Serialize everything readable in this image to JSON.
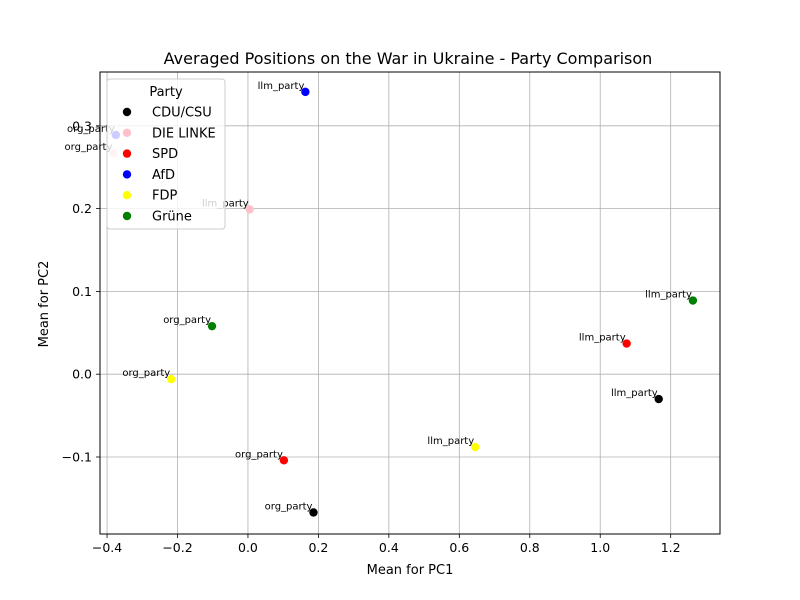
{
  "chart_data": {
    "type": "scatter",
    "title": "Averaged Positions on the War in Ukraine - Party Comparison",
    "xlabel": "Mean for PC1",
    "ylabel": "Mean for PC2",
    "xlim": [
      -0.42,
      1.34
    ],
    "ylim": [
      -0.193,
      0.365
    ],
    "xticks": [
      -0.4,
      -0.2,
      0.0,
      0.2,
      0.4,
      0.6,
      0.8,
      1.0,
      1.2
    ],
    "xtick_labels": [
      "−0.4",
      "−0.2",
      "0.0",
      "0.2",
      "0.4",
      "0.6",
      "0.8",
      "1.0",
      "1.2"
    ],
    "yticks": [
      -0.1,
      0.0,
      0.1,
      0.2,
      0.3
    ],
    "ytick_labels": [
      "−0.1",
      "0.0",
      "0.1",
      "0.2",
      "0.3"
    ],
    "grid": true,
    "legend": {
      "title": "Party",
      "placement": "upper-left",
      "entries": [
        {
          "label": "CDU/CSU",
          "color": "#000000"
        },
        {
          "label": "DIE LINKE",
          "color": "#ffc0cb"
        },
        {
          "label": "SPD",
          "color": "#ff0000"
        },
        {
          "label": "AfD",
          "color": "#0000ff"
        },
        {
          "label": "FDP",
          "color": "#ffff00"
        },
        {
          "label": "Grüne",
          "color": "#008000"
        }
      ]
    },
    "points": [
      {
        "party": "CDU/CSU",
        "source": "llm_party",
        "x": 1.166,
        "y": -0.03,
        "color": "#000000"
      },
      {
        "party": "CDU/CSU",
        "source": "org_party",
        "x": 0.186,
        "y": -0.167,
        "color": "#000000"
      },
      {
        "party": "DIE LINKE",
        "source": "llm_party",
        "x": 0.005,
        "y": 0.199,
        "color": "#ffc0cb"
      },
      {
        "party": "DIE LINKE",
        "source": "org_party",
        "x": -0.382,
        "y": 0.267,
        "color": "#ffc0cb"
      },
      {
        "party": "SPD",
        "source": "llm_party",
        "x": 1.075,
        "y": 0.037,
        "color": "#ff0000"
      },
      {
        "party": "SPD",
        "source": "org_party",
        "x": 0.102,
        "y": -0.104,
        "color": "#ff0000"
      },
      {
        "party": "AfD",
        "source": "llm_party",
        "x": 0.163,
        "y": 0.341,
        "color": "#0000ff"
      },
      {
        "party": "AfD",
        "source": "org_party",
        "x": -0.375,
        "y": 0.289,
        "color": "#0000ff"
      },
      {
        "party": "FDP",
        "source": "llm_party",
        "x": 0.645,
        "y": -0.088,
        "color": "#ffff00"
      },
      {
        "party": "FDP",
        "source": "org_party",
        "x": -0.218,
        "y": -0.006,
        "color": "#ffff00"
      },
      {
        "party": "Grüne",
        "source": "llm_party",
        "x": 1.263,
        "y": 0.089,
        "color": "#008000"
      },
      {
        "party": "Grüne",
        "source": "org_party",
        "x": -0.102,
        "y": 0.058,
        "color": "#008000"
      }
    ]
  }
}
